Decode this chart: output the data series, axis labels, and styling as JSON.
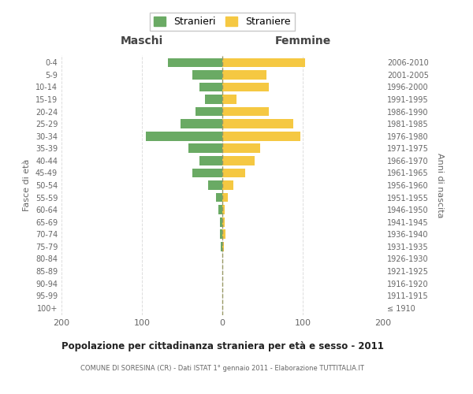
{
  "age_groups": [
    "100+",
    "95-99",
    "90-94",
    "85-89",
    "80-84",
    "75-79",
    "70-74",
    "65-69",
    "60-64",
    "55-59",
    "50-54",
    "45-49",
    "40-44",
    "35-39",
    "30-34",
    "25-29",
    "20-24",
    "15-19",
    "10-14",
    "5-9",
    "0-4"
  ],
  "birth_years": [
    "≤ 1910",
    "1911-1915",
    "1916-1920",
    "1921-1925",
    "1926-1930",
    "1931-1935",
    "1936-1940",
    "1941-1945",
    "1946-1950",
    "1951-1955",
    "1956-1960",
    "1961-1965",
    "1966-1970",
    "1971-1975",
    "1976-1980",
    "1981-1985",
    "1986-1990",
    "1991-1995",
    "1996-2000",
    "2001-2005",
    "2006-2010"
  ],
  "males": [
    0,
    0,
    0,
    0,
    0,
    2,
    3,
    3,
    5,
    8,
    18,
    37,
    28,
    42,
    95,
    52,
    33,
    22,
    28,
    37,
    68
  ],
  "females": [
    0,
    0,
    0,
    0,
    0,
    2,
    4,
    3,
    3,
    7,
    14,
    28,
    40,
    47,
    97,
    88,
    58,
    18,
    58,
    55,
    103
  ],
  "male_color": "#6aaa64",
  "female_color": "#f5c842",
  "center_line_color": "#999966",
  "grid_color": "#dddddd",
  "bg_color": "#ffffff",
  "title": "Popolazione per cittadinanza straniera per età e sesso - 2011",
  "subtitle": "COMUNE DI SORESINA (CR) - Dati ISTAT 1° gennaio 2011 - Elaborazione TUTTITALIA.IT",
  "xlabel_left": "Maschi",
  "xlabel_right": "Femmine",
  "ylabel_left": "Fasce di età",
  "ylabel_right": "Anni di nascita",
  "legend_male": "Stranieri",
  "legend_female": "Straniere",
  "xlim": [
    -200,
    200
  ],
  "xticks": [
    -200,
    -100,
    0,
    100,
    200
  ],
  "xtick_labels": [
    "200",
    "100",
    "0",
    "100",
    "200"
  ]
}
